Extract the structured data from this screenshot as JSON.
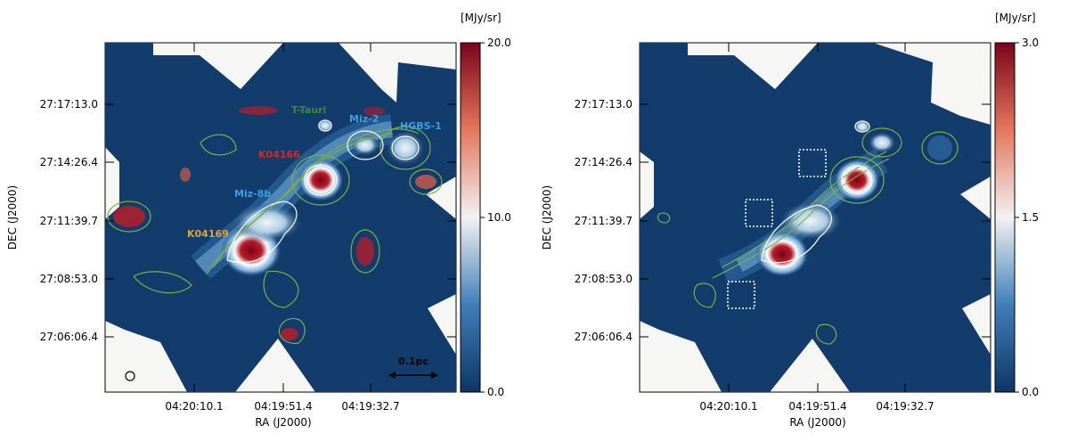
{
  "colorbar_colors": {
    "low": "#0d3566",
    "mid": "#f2f2f2",
    "high": "#7a0418",
    "map_background": "#f6f6f4",
    "map_fill": "#113c6b",
    "contour_green": "#7db044",
    "contour_white": "#ffffff"
  },
  "panels": [
    {
      "id": "left",
      "unit": "[MJy/sr]",
      "colorbar_ticks": [
        "20.0",
        "10.0",
        "0.0"
      ],
      "colorbar_range": [
        0,
        20
      ],
      "ra_ticks": [
        "04:20:10.1",
        "04:19:51.4",
        "04:19:32.7"
      ],
      "dec_ticks": [
        "27:17:13.0",
        "27:14:26.4",
        "27:11:39.7",
        "27:08:53.0",
        "27:06:06.4"
      ],
      "xlabel": "RA (J2000)",
      "ylabel": "DEC (J2000)",
      "source_labels": [
        {
          "name": "T-Tauri",
          "color": "#3e8f2b"
        },
        {
          "name": "Miz-2",
          "color": "#3aa0e0"
        },
        {
          "name": "HGBS-1",
          "color": "#3aa0e0"
        },
        {
          "name": "K04166",
          "color": "#d32a22"
        },
        {
          "name": "Miz-8b",
          "color": "#3aa0e0"
        },
        {
          "name": "K04169",
          "color": "#e8a03a"
        }
      ],
      "scale_bar_label": "0.1pc"
    },
    {
      "id": "right",
      "unit": "[MJy/sr]",
      "colorbar_ticks": [
        "3.0",
        "1.5",
        "0.0"
      ],
      "colorbar_range": [
        0,
        3
      ],
      "ra_ticks": [
        "04:20:10.1",
        "04:19:51.4",
        "04:19:32.7"
      ],
      "dec_ticks": [
        "27:17:13.0",
        "27:14:26.4",
        "27:11:39.7",
        "27:08:53.0",
        "27:06:06.4"
      ],
      "xlabel": "RA (J2000)",
      "ylabel": "DEC (J2000)"
    }
  ]
}
